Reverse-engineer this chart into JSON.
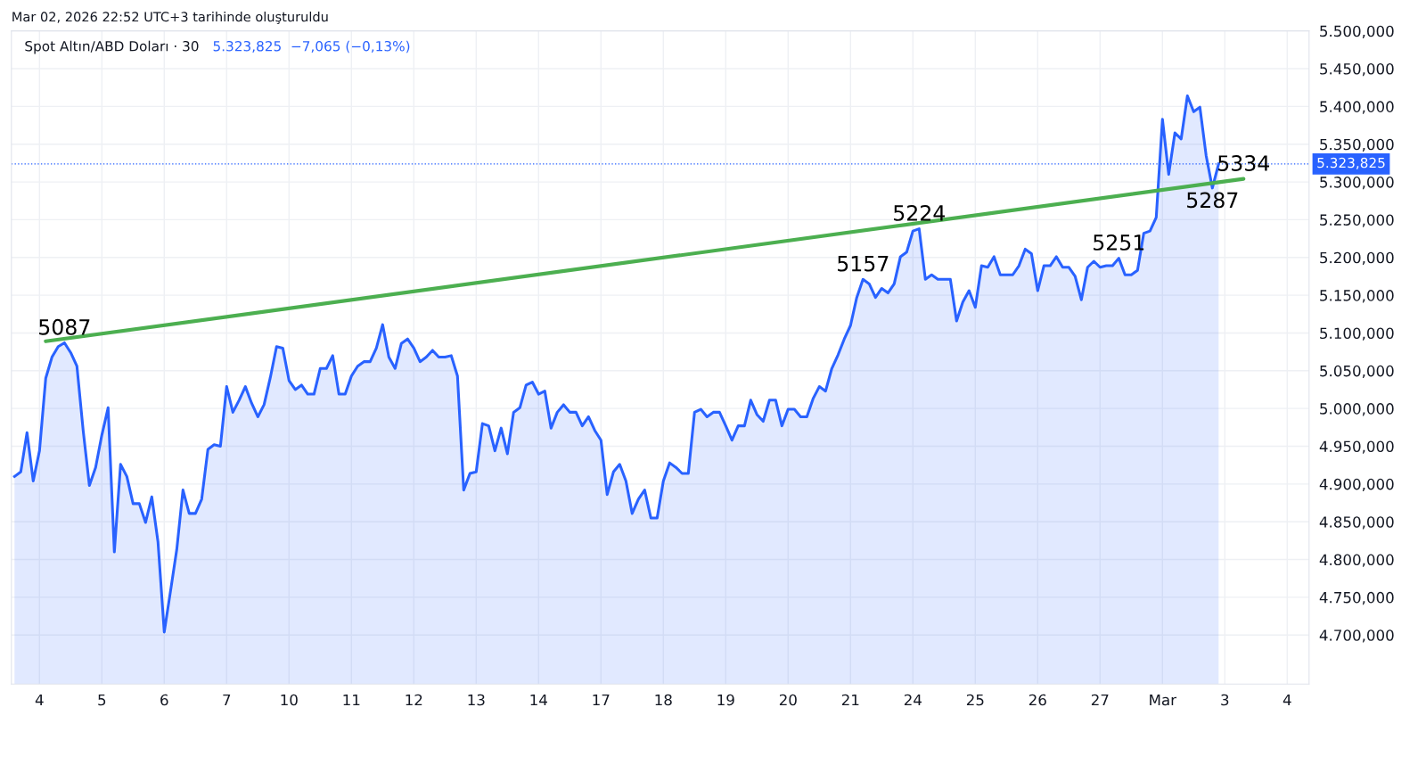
{
  "chart_data": {
    "type": "area",
    "title": "Spot Altın/ABD Doları · 30",
    "subtitle": "5.323,825  −7,065 (−0,13%)",
    "annotations": [
      "Mar 02, 2026 22:52 UTC+3 tarihinde oluşturuldu",
      {
        "text": "5087",
        "y": 5087
      },
      {
        "text": "5157",
        "y": 5171
      },
      {
        "text": "5224",
        "y": 5238
      },
      {
        "text": "5251",
        "y": 5199
      },
      {
        "text": "5287",
        "y": 5292
      },
      {
        "text": "5334",
        "y": 5304
      }
    ],
    "categories": [
      null,
      null,
      null,
      null,
      "4",
      null,
      null,
      null,
      null,
      null,
      null,
      null,
      null,
      null,
      "5",
      null,
      null,
      null,
      null,
      null,
      null,
      null,
      null,
      null,
      "6",
      null,
      null,
      null,
      null,
      null,
      null,
      null,
      null,
      null,
      "7",
      null,
      null,
      null,
      null,
      null,
      null,
      null,
      null,
      null,
      "10",
      null,
      null,
      null,
      null,
      null,
      null,
      null,
      null,
      null,
      "11",
      null,
      null,
      null,
      null,
      null,
      null,
      null,
      null,
      null,
      "12",
      null,
      null,
      null,
      null,
      null,
      null,
      null,
      null,
      null,
      "13",
      null,
      null,
      null,
      null,
      null,
      null,
      null,
      null,
      null,
      "14",
      null,
      null,
      null,
      null,
      null,
      null,
      null,
      null,
      null,
      "17",
      null,
      null,
      null,
      null,
      null,
      null,
      null,
      null,
      null,
      "18",
      null,
      null,
      null,
      null,
      null,
      null,
      null,
      null,
      null,
      "19",
      null,
      null,
      null,
      null,
      null,
      null,
      null,
      null,
      null,
      "20",
      null,
      null,
      null,
      null,
      null,
      null,
      null,
      null,
      null,
      "21",
      null,
      null,
      null,
      null,
      null,
      null,
      null,
      null,
      null,
      "24",
      null,
      null,
      null,
      null,
      null,
      null,
      null,
      null,
      null,
      "25",
      null,
      null,
      null,
      null,
      null,
      null,
      null,
      null,
      null,
      "26",
      null,
      null,
      null,
      null,
      null,
      null,
      null,
      null,
      null,
      "27",
      null,
      null,
      null,
      null,
      null,
      null,
      null,
      null,
      null,
      "Mar",
      null,
      null,
      null,
      null,
      null,
      null,
      null,
      null,
      null,
      "3",
      null,
      null,
      null,
      null,
      null,
      null,
      null,
      null,
      null,
      "4",
      null,
      null,
      null
    ],
    "series": [
      {
        "color": "#2962ff",
        "values": [
          4910,
          4916,
          4968,
          4904,
          4944,
          5040,
          5068,
          5082,
          5087,
          5074,
          5056,
          4971,
          4898,
          4922,
          4965,
          5001,
          4810,
          4926,
          4910,
          4874,
          4874,
          4849,
          4883,
          4823,
          4704,
          4758,
          4813,
          4892,
          4861,
          4861,
          4880,
          4946,
          4952,
          4950,
          5029,
          4995,
          5011,
          5029,
          5007,
          4989,
          5005,
          5041,
          5082,
          5080,
          5037,
          5025,
          5031,
          5019,
          5019,
          5053,
          5053,
          5070,
          5019,
          5019,
          5043,
          5056,
          5062,
          5062,
          5080,
          5111,
          5068,
          5053,
          5086,
          5092,
          5080,
          5062,
          5068,
          5077,
          5068,
          5068,
          5070,
          5043,
          4892,
          4914,
          4916,
          4980,
          4977,
          4944,
          4974,
          4940,
          4995,
          5001,
          5031,
          5035,
          5019,
          5023,
          4974,
          4995,
          5005,
          4995,
          4995,
          4977,
          4989,
          4971,
          4958,
          4886,
          4916,
          4926,
          4904,
          4861,
          4880,
          4892,
          4855,
          4855,
          4904,
          4928,
          4922,
          4914,
          4914,
          4995,
          4999,
          4989,
          4995,
          4995,
          4977,
          4958,
          4977,
          4977,
          5011,
          4992,
          4983,
          5011,
          5011,
          4977,
          4999,
          4999,
          4989,
          4989,
          5013,
          5029,
          5023,
          5053,
          5071,
          5092,
          5110,
          5147,
          5171,
          5165,
          5147,
          5159,
          5153,
          5165,
          5201,
          5207,
          5235,
          5238,
          5171,
          5177,
          5171,
          5171,
          5171,
          5116,
          5141,
          5156,
          5134,
          5189,
          5187,
          5201,
          5177,
          5177,
          5177,
          5189,
          5211,
          5205,
          5156,
          5189,
          5189,
          5201,
          5187,
          5187,
          5175,
          5144,
          5187,
          5195,
          5187,
          5189,
          5189,
          5199,
          5177,
          5177,
          5183,
          5232,
          5235,
          5253,
          5383,
          5310,
          5365,
          5357,
          5414,
          5393,
          5399,
          5335,
          5292,
          5324,
          null,
          null,
          null,
          null,
          null,
          null,
          null,
          null,
          null,
          null,
          null,
          null,
          null,
          null
        ]
      },
      {
        "type": "line",
        "color": "#4caf50",
        "values": [
          null,
          null,
          null,
          null,
          null,
          5089,
          null,
          null,
          null,
          null,
          null,
          null,
          null,
          null,
          null,
          null,
          null,
          null,
          null,
          null,
          null,
          null,
          null,
          null,
          null,
          null,
          null,
          null,
          null,
          null,
          null,
          null,
          null,
          null,
          null,
          null,
          null,
          null,
          null,
          null,
          null,
          null,
          null,
          null,
          null,
          null,
          null,
          null,
          null,
          null,
          null,
          null,
          null,
          null,
          null,
          null,
          null,
          null,
          null,
          null,
          null,
          null,
          null,
          null,
          null,
          null,
          null,
          null,
          null,
          null,
          null,
          null,
          null,
          null,
          null,
          null,
          null,
          null,
          null,
          null,
          null,
          null,
          null,
          null,
          null,
          null,
          null,
          null,
          null,
          null,
          null,
          null,
          null,
          null,
          null,
          null,
          null,
          null,
          null,
          null,
          null,
          null,
          null,
          null,
          null,
          null,
          null,
          null,
          null,
          null,
          null,
          null,
          null,
          null,
          null,
          null,
          null,
          null,
          null,
          null,
          null,
          null,
          null,
          null,
          null,
          null,
          null,
          null,
          null,
          null,
          null,
          null,
          null,
          null,
          null,
          null,
          null,
          null,
          null,
          null,
          null,
          null,
          null,
          null,
          null,
          null,
          null,
          null,
          null,
          null,
          null,
          null,
          null,
          null,
          null,
          null,
          null,
          null,
          null,
          null,
          null,
          null,
          null,
          null,
          null,
          null,
          null,
          null,
          null,
          null,
          null,
          null,
          null,
          null,
          null,
          null,
          null,
          null,
          null,
          null,
          null,
          null,
          null,
          null,
          null,
          null,
          null,
          null,
          null,
          null,
          null,
          null,
          null,
          null,
          null,
          null,
          null,
          5304,
          null,
          null,
          null,
          null,
          null,
          null,
          null,
          null,
          null,
          null
        ]
      }
    ],
    "ref_lines": [
      {
        "axis": "y",
        "value": 5323.825,
        "label": "5.323,825",
        "color": "#2962ff",
        "line_style": "dotted"
      }
    ],
    "ylim": [
      4635,
      5500
    ],
    "yticks": [
      {
        "value": 4700,
        "label": "4.700,000"
      },
      {
        "value": 4750,
        "label": "4.750,000"
      },
      {
        "value": 4800,
        "label": "4.800,000"
      },
      {
        "value": 4850,
        "label": "4.850,000"
      },
      {
        "value": 4900,
        "label": "4.900,000"
      },
      {
        "value": 4950,
        "label": "4.950,000"
      },
      {
        "value": 5000,
        "label": "5.000,000"
      },
      {
        "value": 5050,
        "label": "5.050,000"
      },
      {
        "value": 5100,
        "label": "5.100,000"
      },
      {
        "value": 5150,
        "label": "5.150,000"
      },
      {
        "value": 5200,
        "label": "5.200,000"
      },
      {
        "value": 5250,
        "label": "5.250,000"
      },
      {
        "value": 5300,
        "label": "5.300,000"
      },
      {
        "value": 5350,
        "label": "5.350,000"
      },
      {
        "value": 5400,
        "label": "5.400,000"
      },
      {
        "value": 5450,
        "label": "5.450,000"
      },
      {
        "value": 5500,
        "label": "5.500,000"
      }
    ],
    "grid": true,
    "legend": false
  }
}
